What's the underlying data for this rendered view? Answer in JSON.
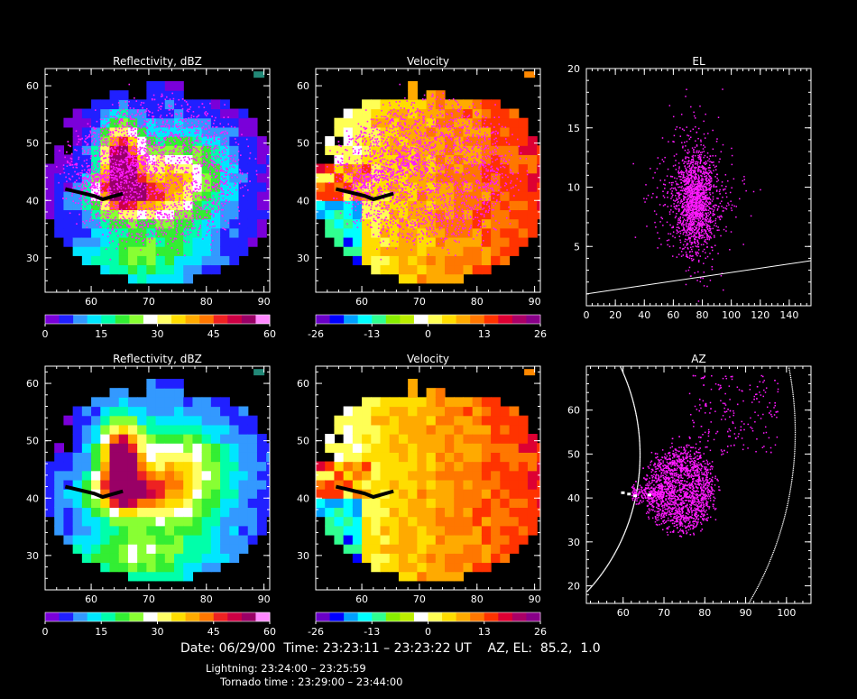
{
  "footer": {
    "date_line": "Date: 06/29/00  Time: 23:23:11 – 23:23:22 UT    AZ, EL:  85.2,  1.0",
    "lightning_line": "Lightning: 23:24:00 – 23:25:59",
    "tornado_line": "Tornado time : 23:29:00 – 23:44:00"
  },
  "colors": {
    "background": "#000000",
    "axes": "#ffffff",
    "lightning": "#ff1aff",
    "track": "#000000"
  },
  "chart_data": [
    {
      "id": "refl-top",
      "type": "heatmap",
      "title": "Reflectivity, dBZ",
      "xlim": [
        52,
        91
      ],
      "ylim": [
        24,
        63
      ],
      "xticks": [
        60,
        70,
        80,
        90
      ],
      "yticks": [
        30,
        40,
        50,
        60
      ],
      "field": "reflectivity",
      "colorbar": {
        "ticks": [
          "0",
          "15",
          "30",
          "45",
          "60"
        ],
        "range": [
          0,
          60
        ]
      },
      "lightning_overlay": true
    },
    {
      "id": "vel-top",
      "type": "heatmap",
      "title": "Velocity",
      "xlim": [
        52,
        91
      ],
      "ylim": [
        24,
        63
      ],
      "xticks": [
        60,
        70,
        80,
        90
      ],
      "yticks": [
        30,
        40,
        50,
        60
      ],
      "field": "velocity",
      "colorbar": {
        "ticks": [
          "-26",
          "-13",
          "0",
          "13",
          "26"
        ],
        "range": [
          -26,
          26
        ]
      },
      "lightning_overlay": true
    },
    {
      "id": "el",
      "type": "scatter",
      "title": "EL",
      "xlim": [
        0,
        155
      ],
      "ylim": [
        0,
        20
      ],
      "xticks": [
        0,
        20,
        40,
        60,
        80,
        100,
        120,
        140
      ],
      "yticks": [
        5,
        10,
        15,
        20
      ],
      "point_cloud": {
        "center": [
          75,
          9
        ],
        "spread": [
          8,
          2.5
        ]
      },
      "beam_line": [
        [
          0,
          1.0
        ],
        [
          155,
          3.8
        ]
      ]
    },
    {
      "id": "refl-bottom",
      "type": "heatmap",
      "title": "Reflectivity, dBZ",
      "xlim": [
        52,
        91
      ],
      "ylim": [
        24,
        63
      ],
      "xticks": [
        60,
        70,
        80,
        90
      ],
      "yticks": [
        30,
        40,
        50,
        60
      ],
      "field": "reflectivity",
      "colorbar": {
        "ticks": [
          "0",
          "15",
          "30",
          "45",
          "60"
        ],
        "range": [
          0,
          60
        ]
      },
      "lightning_overlay": false
    },
    {
      "id": "vel-bottom",
      "type": "heatmap",
      "title": "Velocity",
      "xlim": [
        52,
        91
      ],
      "ylim": [
        24,
        63
      ],
      "xticks": [
        60,
        70,
        80,
        90
      ],
      "yticks": [
        30,
        40,
        50,
        60
      ],
      "field": "velocity",
      "colorbar": {
        "ticks": [
          "-26",
          "-13",
          "0",
          "13",
          "26"
        ],
        "range": [
          -26,
          26
        ]
      },
      "lightning_overlay": false
    },
    {
      "id": "az",
      "type": "scatter",
      "title": "AZ",
      "xlim": [
        51,
        106
      ],
      "ylim": [
        16,
        70
      ],
      "xticks": [
        60,
        70,
        80,
        90,
        100
      ],
      "yticks": [
        20,
        30,
        40,
        50,
        60
      ],
      "point_cloud": {
        "center": [
          73,
          43
        ],
        "spread": [
          6,
          6
        ]
      }
    }
  ]
}
